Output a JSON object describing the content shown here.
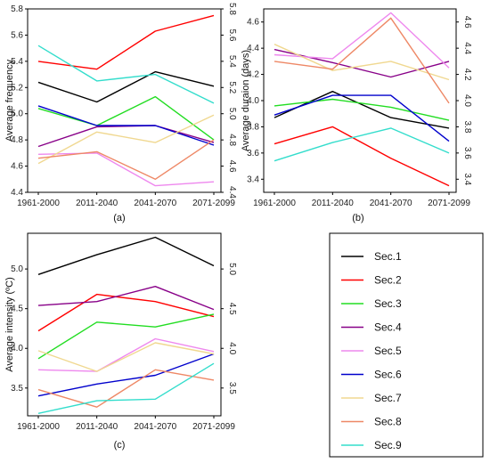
{
  "legend": {
    "items": [
      {
        "name": "Sec.1",
        "color": "#000000"
      },
      {
        "name": "Sec.2",
        "color": "#ff0000"
      },
      {
        "name": "Sec.3",
        "color": "#22dd22"
      },
      {
        "name": "Sec.4",
        "color": "#880088"
      },
      {
        "name": "Sec.5",
        "color": "#ee88ee"
      },
      {
        "name": "Sec.6",
        "color": "#0000cc"
      },
      {
        "name": "Sec.7",
        "color": "#f0d890"
      },
      {
        "name": "Sec.8",
        "color": "#ee8866"
      },
      {
        "name": "Sec.9",
        "color": "#33ddcc"
      }
    ]
  },
  "chart_data": [
    {
      "type": "line",
      "panel_label": "(a)",
      "title": "",
      "xlabel": "",
      "ylabel": "Average frequency",
      "categories": [
        "1961-2000",
        "2011-2040",
        "2041-2070",
        "2071-2099"
      ],
      "ylim": [
        4.4,
        5.8
      ],
      "yticks": [
        4.4,
        4.6,
        4.8,
        5.0,
        5.2,
        5.4,
        5.6,
        5.8
      ],
      "ytick_labels": [
        "4.4",
        "4.6",
        "4.8",
        "5.0",
        "5.2",
        "5.4",
        "5.6",
        "5.8"
      ],
      "right_axis": true,
      "series": [
        {
          "name": "Sec.1",
          "values": [
            5.24,
            5.09,
            5.32,
            5.21
          ]
        },
        {
          "name": "Sec.2",
          "values": [
            5.4,
            5.34,
            5.63,
            5.75
          ]
        },
        {
          "name": "Sec.3",
          "values": [
            5.04,
            4.91,
            5.13,
            4.8
          ]
        },
        {
          "name": "Sec.4",
          "values": [
            4.75,
            4.9,
            4.91,
            4.78
          ]
        },
        {
          "name": "Sec.5",
          "values": [
            4.69,
            4.7,
            4.45,
            4.48
          ]
        },
        {
          "name": "Sec.6",
          "values": [
            5.06,
            4.91,
            4.91,
            4.76
          ]
        },
        {
          "name": "Sec.7",
          "values": [
            4.62,
            4.86,
            4.78,
            4.99
          ]
        },
        {
          "name": "Sec.8",
          "values": [
            4.66,
            4.71,
            4.5,
            4.8
          ]
        },
        {
          "name": "Sec.9",
          "values": [
            5.52,
            5.25,
            5.3,
            5.08
          ]
        }
      ]
    },
    {
      "type": "line",
      "panel_label": "(b)",
      "title": "",
      "xlabel": "",
      "ylabel": "Average duraion (days)",
      "categories": [
        "1961-2000",
        "2011-2040",
        "2041-2070",
        "2071-2099"
      ],
      "ylim": [
        3.3,
        4.7
      ],
      "yticks": [
        3.4,
        3.6,
        3.8,
        4.0,
        4.2,
        4.4,
        4.6
      ],
      "ytick_labels": [
        "3.4",
        "3.6",
        "3.8",
        "4.0",
        "4.2",
        "4.4",
        "4.6"
      ],
      "right_axis": true,
      "series": [
        {
          "name": "Sec.1",
          "values": [
            3.87,
            4.07,
            3.87,
            3.79
          ]
        },
        {
          "name": "Sec.2",
          "values": [
            3.67,
            3.8,
            3.56,
            3.35
          ]
        },
        {
          "name": "Sec.3",
          "values": [
            3.96,
            4.01,
            3.95,
            3.85
          ]
        },
        {
          "name": "Sec.4",
          "values": [
            4.39,
            4.29,
            4.18,
            4.3
          ]
        },
        {
          "name": "Sec.5",
          "values": [
            4.35,
            4.32,
            4.67,
            4.25
          ]
        },
        {
          "name": "Sec.6",
          "values": [
            3.89,
            4.04,
            4.04,
            3.69
          ]
        },
        {
          "name": "Sec.7",
          "values": [
            4.43,
            4.23,
            4.3,
            4.16
          ]
        },
        {
          "name": "Sec.8",
          "values": [
            4.3,
            4.24,
            4.63,
            3.98
          ]
        },
        {
          "name": "Sec.9",
          "values": [
            3.54,
            3.68,
            3.79,
            3.6
          ]
        }
      ]
    },
    {
      "type": "line",
      "panel_label": "(c)",
      "title": "",
      "xlabel": "",
      "ylabel": "Average intensity (ºC)",
      "categories": [
        "1961-2000",
        "2011-2040",
        "2041-2070",
        "2071-2099"
      ],
      "ylim": [
        3.15,
        5.45
      ],
      "yticks": [
        3.5,
        4.0,
        4.5,
        5.0
      ],
      "ytick_labels": [
        "3.5",
        "4.0",
        "4.5",
        "5.0"
      ],
      "right_axis": true,
      "series": [
        {
          "name": "Sec.1",
          "values": [
            4.93,
            5.18,
            5.4,
            5.04
          ]
        },
        {
          "name": "Sec.2",
          "values": [
            4.22,
            4.68,
            4.59,
            4.4
          ]
        },
        {
          "name": "Sec.3",
          "values": [
            3.87,
            4.33,
            4.27,
            4.43
          ]
        },
        {
          "name": "Sec.4",
          "values": [
            4.54,
            4.59,
            4.78,
            4.49
          ]
        },
        {
          "name": "Sec.5",
          "values": [
            3.73,
            3.71,
            4.12,
            3.96
          ]
        },
        {
          "name": "Sec.6",
          "values": [
            3.4,
            3.55,
            3.66,
            3.93
          ]
        },
        {
          "name": "Sec.7",
          "values": [
            3.97,
            3.71,
            4.07,
            3.93
          ]
        },
        {
          "name": "Sec.8",
          "values": [
            3.48,
            3.26,
            3.73,
            3.6
          ]
        },
        {
          "name": "Sec.9",
          "values": [
            3.18,
            3.34,
            3.36,
            3.81
          ]
        }
      ]
    }
  ]
}
